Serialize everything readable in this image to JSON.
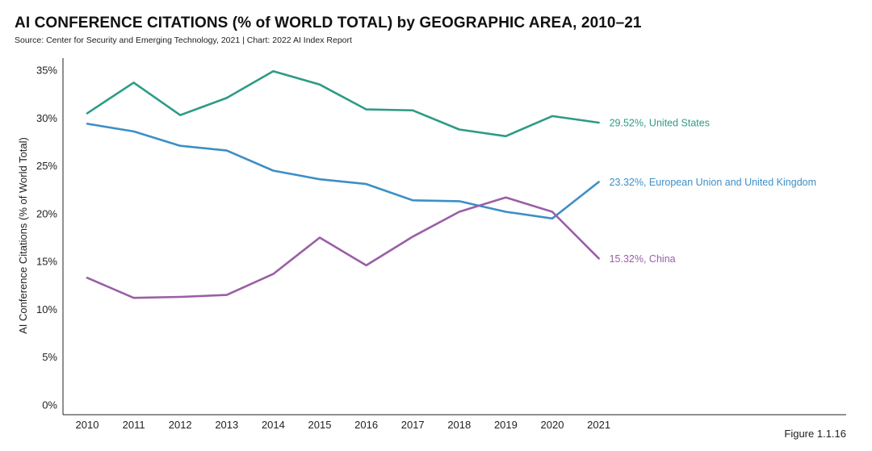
{
  "title": "AI CONFERENCE CITATIONS (% of WORLD TOTAL) by GEOGRAPHIC AREA, 2010–21",
  "subtitle": "Source: Center for Security and Emerging Technology, 2021 | Chart: 2022 AI Index Report",
  "figure_label": "Figure 1.1.16",
  "chart_data": {
    "type": "line",
    "title": "AI CONFERENCE CITATIONS (% of WORLD TOTAL) by GEOGRAPHIC AREA, 2010–21",
    "xlabel": "",
    "ylabel": "AI Conference Citations (% of World Total)",
    "categories": [
      "2010",
      "2011",
      "2012",
      "2013",
      "2014",
      "2015",
      "2016",
      "2017",
      "2018",
      "2019",
      "2020",
      "2021"
    ],
    "ylim": [
      0,
      35
    ],
    "yticks": [
      "0%",
      "5%",
      "10%",
      "15%",
      "20%",
      "25%",
      "30%",
      "35%"
    ],
    "grid": false,
    "series": [
      {
        "name": "United States",
        "color": "#2e9b86",
        "end_label": "29.52%, United States",
        "values": [
          30.5,
          33.7,
          30.3,
          32.1,
          34.9,
          33.5,
          30.9,
          30.8,
          28.8,
          28.1,
          30.2,
          29.52
        ]
      },
      {
        "name": "European Union and United Kingdom",
        "color": "#3d8fc6",
        "end_label": "23.32%, European Union and United Kingdom",
        "values": [
          29.4,
          28.6,
          27.1,
          26.6,
          24.5,
          23.6,
          23.1,
          21.4,
          21.3,
          20.2,
          19.5,
          23.32
        ]
      },
      {
        "name": "China",
        "color": "#9a5fa6",
        "end_label": "15.32%, China",
        "values": [
          13.3,
          11.2,
          11.3,
          11.5,
          13.7,
          17.5,
          14.6,
          17.6,
          20.2,
          21.7,
          20.2,
          15.32
        ]
      }
    ]
  }
}
